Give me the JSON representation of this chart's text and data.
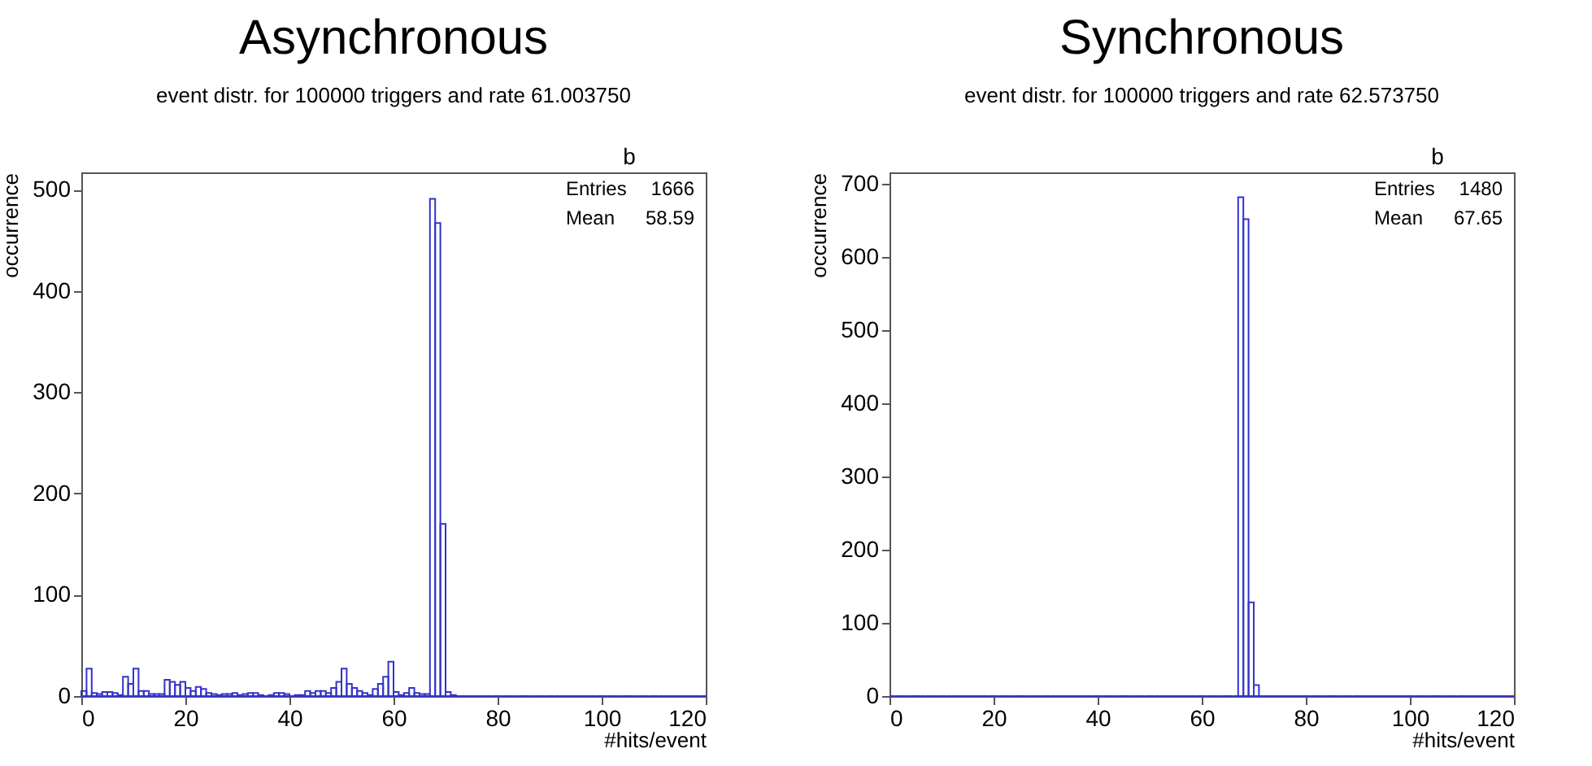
{
  "chart_data": [
    {
      "type": "histogram",
      "title": "Asynchronous",
      "subtitle": "event distr. for 100000 triggers and rate 61.003750",
      "xlabel": "#hits/event",
      "ylabel": "occurrence",
      "color": "#3333cc",
      "bins": [
        0,
        1,
        2,
        3,
        4,
        5,
        6,
        7,
        8,
        9,
        10,
        11,
        12,
        13,
        14,
        15,
        16,
        17,
        18,
        19,
        20,
        21,
        22,
        23,
        24,
        25,
        26,
        27,
        28,
        29,
        30,
        31,
        32,
        33,
        34,
        35,
        36,
        37,
        38,
        39,
        40,
        41,
        42,
        43,
        44,
        45,
        46,
        47,
        48,
        49,
        50,
        51,
        52,
        53,
        54,
        55,
        56,
        57,
        58,
        59,
        60,
        61,
        62,
        63,
        64,
        65,
        66,
        67,
        68,
        69,
        70,
        71,
        72,
        73,
        74,
        75,
        76,
        77,
        78,
        79,
        80,
        81,
        82,
        83,
        84,
        85,
        86,
        87,
        88,
        89,
        90,
        91,
        92,
        93,
        94,
        95,
        96,
        97,
        98,
        99,
        100,
        101,
        102,
        103,
        104,
        105,
        106,
        107,
        108,
        109,
        110,
        111,
        112,
        113,
        114,
        115,
        116,
        117,
        118,
        119,
        120
      ],
      "values": [
        5,
        27,
        3,
        2,
        4,
        4,
        3,
        1,
        19,
        12,
        27,
        5,
        5,
        2,
        2,
        2,
        16,
        14,
        11,
        14,
        8,
        5,
        9,
        7,
        3,
        2,
        1,
        2,
        2,
        3,
        1,
        2,
        3,
        3,
        1,
        0,
        1,
        3,
        3,
        2,
        0,
        1,
        1,
        5,
        3,
        5,
        5,
        3,
        8,
        14,
        27,
        12,
        8,
        5,
        3,
        1,
        7,
        12,
        19,
        34,
        4,
        1,
        3,
        8,
        3,
        2,
        2,
        491,
        467,
        170,
        4,
        1,
        0,
        0,
        0,
        0,
        0,
        0,
        0,
        0,
        0,
        0,
        0,
        0,
        0,
        0,
        0,
        0,
        0,
        0,
        0,
        0,
        0,
        0,
        0,
        0,
        0,
        0,
        0,
        0,
        0,
        0,
        0,
        0,
        0,
        0,
        0,
        0,
        0,
        0,
        0,
        0,
        0,
        0,
        0,
        0,
        0,
        0,
        0,
        0
      ],
      "xlim": [
        0,
        120
      ],
      "xticks": [
        0,
        20,
        40,
        60,
        80,
        100,
        120
      ],
      "ylim": [
        0,
        517
      ],
      "yticks": [
        0,
        100,
        200,
        300,
        400,
        500
      ],
      "annotations": [
        "b",
        "Entries",
        "1666",
        "Mean",
        "58.59"
      ]
    },
    {
      "type": "histogram",
      "title": "Synchronous",
      "subtitle": "event distr. for 100000 triggers and rate 62.573750",
      "xlabel": "#hits/event",
      "ylabel": "occurrence",
      "color": "#3333cc",
      "bins": [
        0,
        1,
        2,
        3,
        4,
        5,
        6,
        7,
        8,
        9,
        10,
        11,
        12,
        13,
        14,
        15,
        16,
        17,
        18,
        19,
        20,
        21,
        22,
        23,
        24,
        25,
        26,
        27,
        28,
        29,
        30,
        31,
        32,
        33,
        34,
        35,
        36,
        37,
        38,
        39,
        40,
        41,
        42,
        43,
        44,
        45,
        46,
        47,
        48,
        49,
        50,
        51,
        52,
        53,
        54,
        55,
        56,
        57,
        58,
        59,
        60,
        61,
        62,
        63,
        64,
        65,
        66,
        67,
        68,
        69,
        70,
        71,
        72,
        73,
        74,
        75,
        76,
        77,
        78,
        79,
        80,
        81,
        82,
        83,
        84,
        85,
        86,
        87,
        88,
        89,
        90,
        91,
        92,
        93,
        94,
        95,
        96,
        97,
        98,
        99,
        100,
        101,
        102,
        103,
        104,
        105,
        106,
        107,
        108,
        109,
        110,
        111,
        112,
        113,
        114,
        115,
        116,
        117,
        118,
        119,
        120
      ],
      "values": [
        0,
        0,
        0,
        0,
        0,
        0,
        0,
        0,
        0,
        0,
        0,
        0,
        0,
        0,
        0,
        0,
        0,
        0,
        0,
        0,
        0,
        0,
        0,
        0,
        0,
        0,
        0,
        0,
        0,
        0,
        0,
        0,
        0,
        0,
        0,
        0,
        0,
        0,
        0,
        0,
        0,
        0,
        0,
        0,
        0,
        0,
        0,
        0,
        0,
        0,
        0,
        0,
        0,
        0,
        0,
        0,
        0,
        0,
        0,
        0,
        0,
        0,
        0,
        0,
        0,
        0,
        0,
        682,
        652,
        128,
        15,
        0,
        0,
        0,
        0,
        0,
        0,
        0,
        0,
        0,
        0,
        0,
        0,
        0,
        0,
        0,
        0,
        0,
        0,
        0,
        0,
        0,
        0,
        0,
        0,
        0,
        0,
        0,
        0,
        0,
        0,
        0,
        0,
        0,
        0,
        0,
        0,
        0,
        0,
        0,
        0,
        0,
        0,
        0,
        0,
        0,
        0,
        0,
        0,
        0
      ],
      "xlim": [
        0,
        120
      ],
      "xticks": [
        0,
        20,
        40,
        60,
        80,
        100,
        120
      ],
      "ylim": [
        0,
        716
      ],
      "yticks": [
        0,
        100,
        200,
        300,
        400,
        500,
        600,
        700
      ],
      "annotations": [
        "b",
        "Entries",
        "1480",
        "Mean",
        "67.65"
      ]
    }
  ]
}
